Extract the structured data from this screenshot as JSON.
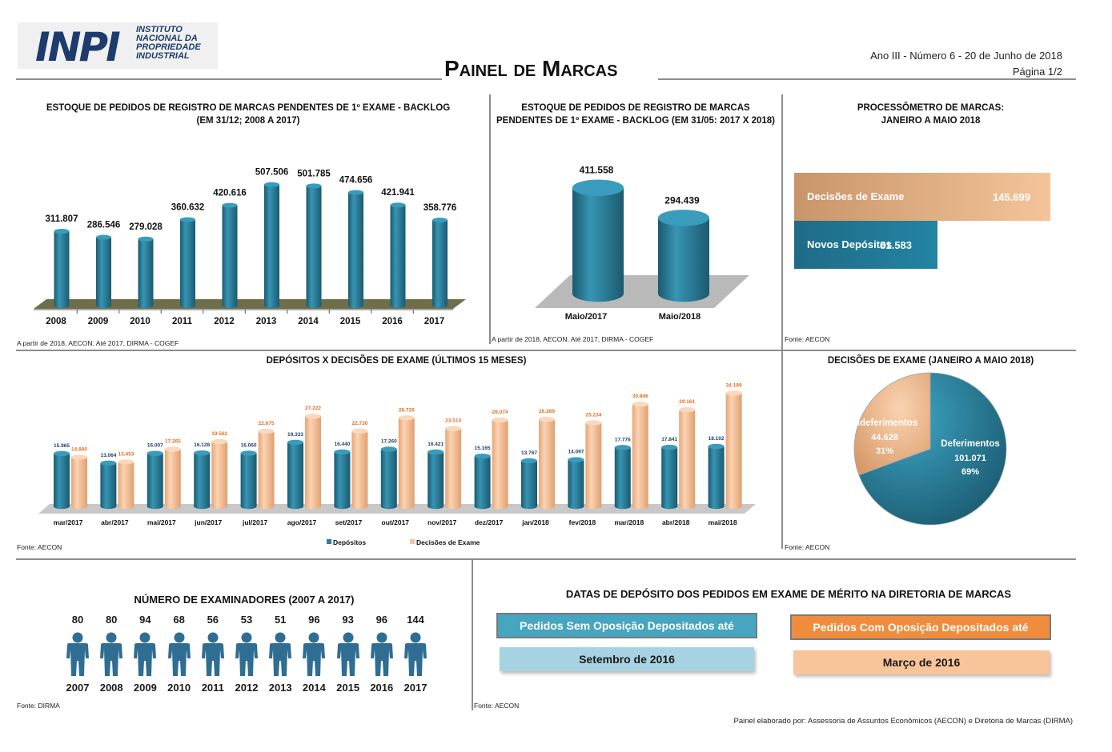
{
  "header": {
    "logo_mark": "INPI",
    "logo_lines": [
      "INSTITUTO",
      "NACIONAL DA",
      "PROPRIEDADE",
      "INDUSTRIAL"
    ],
    "title": "Painel de Marcas",
    "issue": "Ano III - Número 6 - 20 de Junho de 2018",
    "page": "Página 1/2"
  },
  "backlog_chart": {
    "title_lines": [
      "ESTOQUE DE PEDIDOS DE REGISTRO DE MARCAS PENDENTES DE 1º EXAME - BACKLOG",
      "(EM 31/12; 2008 A 2017)"
    ],
    "source": "A partir de 2018, AECON. Até 2017, DIRMA - COGEF"
  },
  "backlog_compare": {
    "title_lines": [
      "ESTOQUE DE PEDIDOS DE REGISTRO DE MARCAS",
      "PENDENTES DE 1º EXAME - BACKLOG (EM 31/05: 2017 X 2018)"
    ],
    "source": "A partir de 2018, AECON. Até 2017, DIRMA - COGEF"
  },
  "processometro": {
    "title_lines": [
      "PROCESSÔMETRO DE MARCAS:",
      "JANEIRO A MAIO 2018"
    ],
    "rows": [
      {
        "label": "Decisões de Exame",
        "value": "145.699",
        "color": "#c8956a"
      },
      {
        "label": "Novos Depósitos",
        "value": "81.583",
        "color": "#1f6b86"
      }
    ],
    "source": "Fonte: AECON"
  },
  "monthly": {
    "title": "DEPÓSITOS X DECISÕES DE EXAME (ÚLTIMOS 15 MESES)",
    "legend": [
      "Depósitos",
      "Decisões de Exame"
    ],
    "source": "Fonte: AECON"
  },
  "pie": {
    "title": "DECISÕES DE EXAME (JANEIRO A MAIO 2018)",
    "source": "Fonte: AECON"
  },
  "examiners": {
    "title": "NÚMERO DE EXAMINADORES (2007 A 2017)",
    "years": [
      "2007",
      "2008",
      "2009",
      "2010",
      "2011",
      "2012",
      "2013",
      "2014",
      "2015",
      "2016",
      "2017"
    ],
    "counts": [
      "80",
      "80",
      "94",
      "68",
      "56",
      "53",
      "51",
      "96",
      "93",
      "96",
      "144"
    ],
    "icon": "person-icon",
    "source": "Fonte: DIRMA"
  },
  "dates": {
    "title": "DATAS DE DEPÓSITO DOS PEDIDOS EM EXAME DE MÉRITO NA DIRETORIA DE MARCAS",
    "sem_label": "Pedidos Sem Oposição Depositados até",
    "sem_value": "Setembro de 2016",
    "com_label": "Pedidos Com Oposição Depositados até",
    "com_value": "Março de 2016",
    "source": "Fonte: AECON"
  },
  "footer": "Painel elaborado por: Assessoria de Assuntos Econômicos (AECON) e Diretoria de Marcas (DIRMA)",
  "colors": {
    "teal": "#2a7f9a",
    "teal_dark": "#1f5f75",
    "peach": "#f5c49c",
    "peach_dark": "#e0a070",
    "value_blue": "#1f3f6e",
    "value_orange": "#e07020"
  },
  "chart_data": [
    {
      "type": "bar",
      "title": "ESTOQUE DE PEDIDOS DE REGISTRO DE MARCAS PENDENTES DE 1º EXAME - BACKLOG (EM 31/12; 2008 A 2017)",
      "categories": [
        "2008",
        "2009",
        "2010",
        "2011",
        "2012",
        "2013",
        "2014",
        "2015",
        "2016",
        "2017"
      ],
      "values": [
        311807,
        286546,
        279028,
        360632,
        420616,
        507506,
        501785,
        474656,
        421941,
        358776
      ],
      "labels": [
        "311.807",
        "286.546",
        "279.028",
        "360.632",
        "420.616",
        "507.506",
        "501.785",
        "474.656",
        "421.941",
        "358.776"
      ],
      "ylim": [
        0,
        520000
      ]
    },
    {
      "type": "bar",
      "title": "ESTOQUE DE PEDIDOS DE REGISTRO DE MARCAS PENDENTES DE 1º EXAME - BACKLOG (EM 31/05: 2017 X 2018)",
      "categories": [
        "Maio/2017",
        "Maio/2018"
      ],
      "values": [
        411558,
        294439
      ],
      "labels": [
        "411.558",
        "294.439"
      ],
      "ylim": [
        0,
        420000
      ]
    },
    {
      "type": "bar",
      "title": "PROCESSÔMETRO DE MARCAS: JANEIRO A MAIO 2018",
      "categories": [
        "Decisões de Exame",
        "Novos Depósitos"
      ],
      "values": [
        145699,
        81583
      ]
    },
    {
      "type": "bar",
      "title": "DEPÓSITOS X DECISÕES DE EXAME (ÚLTIMOS 15 MESES)",
      "categories": [
        "mar/2017",
        "abr/2017",
        "mai/2017",
        "jun/2017",
        "jul/2017",
        "ago/2017",
        "set/2017",
        "out/2017",
        "nov/2017",
        "dez/2017",
        "jan/2018",
        "fev/2018",
        "mar/2018",
        "abr/2018",
        "mai/2018"
      ],
      "series": [
        {
          "name": "Depósitos",
          "values": [
            15965,
            13064,
            16007,
            16128,
            16060,
            19333,
            16440,
            17260,
            16421,
            15165,
            13767,
            14097,
            17776,
            17841,
            18102
          ],
          "labels": [
            "15.965",
            "13.064",
            "16.007",
            "16.128",
            "16.060",
            "19.333",
            "16.440",
            "17.260",
            "16.421",
            "15.165",
            "13.767",
            "14.097",
            "17.776",
            "17.841",
            "18.102"
          ]
        },
        {
          "name": "Decisões de Exame",
          "values": [
            14880,
            13453,
            17265,
            19562,
            22675,
            27222,
            22730,
            26726,
            23514,
            26074,
            26269,
            25234,
            30846,
            29161,
            34189
          ],
          "labels": [
            "14.880",
            "13.453",
            "17.265",
            "19.562",
            "22.675",
            "27.222",
            "22.730",
            "26.726",
            "23.514",
            "26.074",
            "26.269",
            "25.234",
            "30.846",
            "29.161",
            "34.189"
          ]
        }
      ],
      "ylim": [
        0,
        35000
      ],
      "legend": "bottom"
    },
    {
      "type": "pie",
      "title": "DECISÕES DE EXAME (JANEIRO A MAIO 2018)",
      "categories": [
        "Deferimentos",
        "Indeferimentos"
      ],
      "values": [
        101071,
        44628
      ],
      "labels": [
        "101.071",
        "44.628"
      ],
      "percents": [
        "69%",
        "31%"
      ]
    },
    {
      "type": "bar",
      "title": "NÚMERO DE EXAMINADORES (2007 A 2017)",
      "categories": [
        "2007",
        "2008",
        "2009",
        "2010",
        "2011",
        "2012",
        "2013",
        "2014",
        "2015",
        "2016",
        "2017"
      ],
      "values": [
        80,
        80,
        94,
        68,
        56,
        53,
        51,
        96,
        93,
        96,
        144
      ]
    }
  ]
}
